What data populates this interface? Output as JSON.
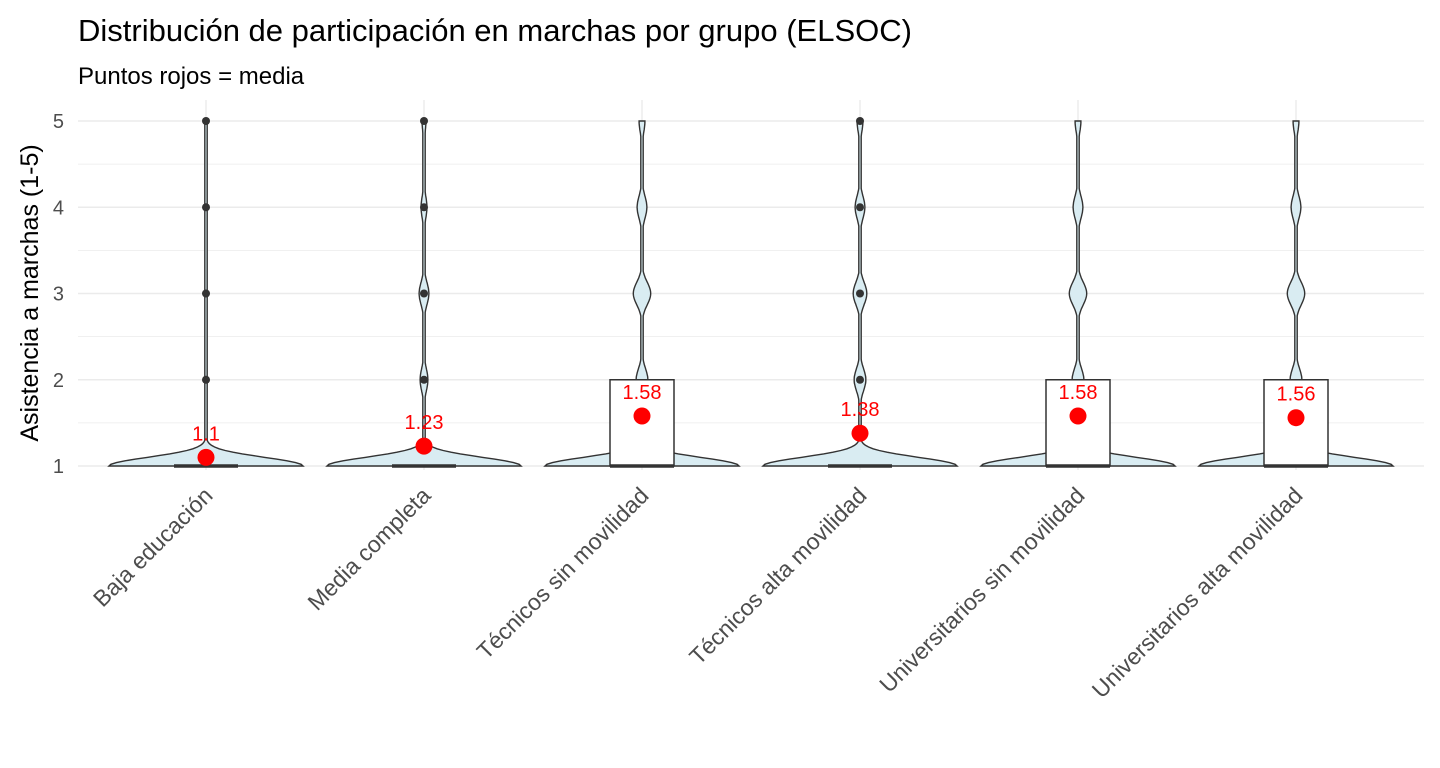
{
  "chart_data": {
    "type": "violin",
    "title": "Distribución de participación en marchas por grupo (ELSOC)",
    "subtitle": "Puntos rojos = media",
    "xlabel": "",
    "ylabel": "Asistencia a marchas (1-5)",
    "ylim": [
      1,
      5
    ],
    "yticks": [
      "1",
      "2",
      "3",
      "4",
      "5"
    ],
    "grid": true,
    "categories": [
      "Baja educación",
      "Media completa",
      "Técnicos sin movilidad",
      "Técnicos alta movilidad",
      "Universitarios sin movilidad",
      "Universitarios alta movilidad"
    ],
    "means": [
      1.1,
      1.23,
      1.58,
      1.38,
      1.58,
      1.56
    ],
    "mean_labels": [
      "1.1",
      "1.23",
      "1.58",
      "1.38",
      "1.58",
      "1.56"
    ],
    "medians": [
      1,
      1,
      1,
      1,
      1,
      1
    ],
    "q3": [
      1,
      1,
      2,
      1,
      2,
      2
    ],
    "outliers": [
      [
        2,
        3,
        4,
        5
      ],
      [
        2,
        3,
        4,
        5
      ],
      [],
      [
        2,
        3,
        4,
        5
      ],
      [],
      []
    ],
    "density_shape_relative": [
      [
        1.0,
        0.01,
        0.01,
        0.005,
        0.005
      ],
      [
        1.0,
        0.04,
        0.05,
        0.03,
        0.02
      ],
      [
        1.0,
        0.06,
        0.09,
        0.05,
        0.03
      ],
      [
        1.0,
        0.06,
        0.07,
        0.05,
        0.03
      ],
      [
        1.0,
        0.06,
        0.09,
        0.05,
        0.03
      ],
      [
        1.0,
        0.06,
        0.09,
        0.05,
        0.03
      ]
    ],
    "colors": {
      "violin_fill": "#d9ecf2",
      "violin_stroke": "#333333",
      "box_stroke": "#333333",
      "mean_point": "#ff0000",
      "mean_label": "#ff0000",
      "outlier": "#333333",
      "grid": "#ebebeb"
    }
  }
}
